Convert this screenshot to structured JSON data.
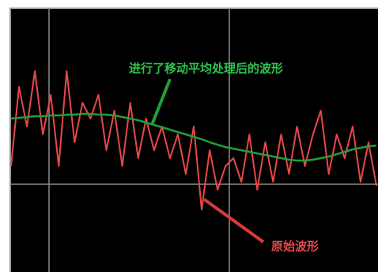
{
  "chart_data": {
    "type": "line",
    "ylim": [
      0,
      334
    ],
    "series": [
      {
        "color": "#e8484a",
        "values": [
          134,
          234,
          184,
          254,
          174,
          224,
          134,
          254,
          164,
          214,
          194,
          224,
          154,
          204,
          134,
          214,
          144,
          194,
          154,
          184,
          144,
          174,
          124,
          184,
          79,
          154,
          104,
          134,
          144,
          114,
          174,
          104,
          164,
          114,
          174,
          124,
          184,
          134,
          174,
          204,
          124,
          174,
          144,
          184,
          114,
          164,
          109
        ]
      },
      {
        "color": "#1f9e3c",
        "values": [
          194,
          195,
          196,
          197,
          197,
          198,
          198,
          199,
          199,
          200,
          200,
          199,
          199,
          198,
          196,
          194,
          192,
          189,
          186,
          183,
          180,
          177,
          174,
          171,
          168,
          164,
          161,
          158,
          156,
          154,
          152,
          150,
          148,
          146,
          144,
          142,
          141,
          141,
          142,
          144,
          146,
          149,
          152,
          155,
          157,
          159,
          160
        ]
      }
    ],
    "annotations": [
      {
        "text": "进行了移动平均处理后的波形"
      },
      {
        "text": "原始波形"
      }
    ]
  }
}
